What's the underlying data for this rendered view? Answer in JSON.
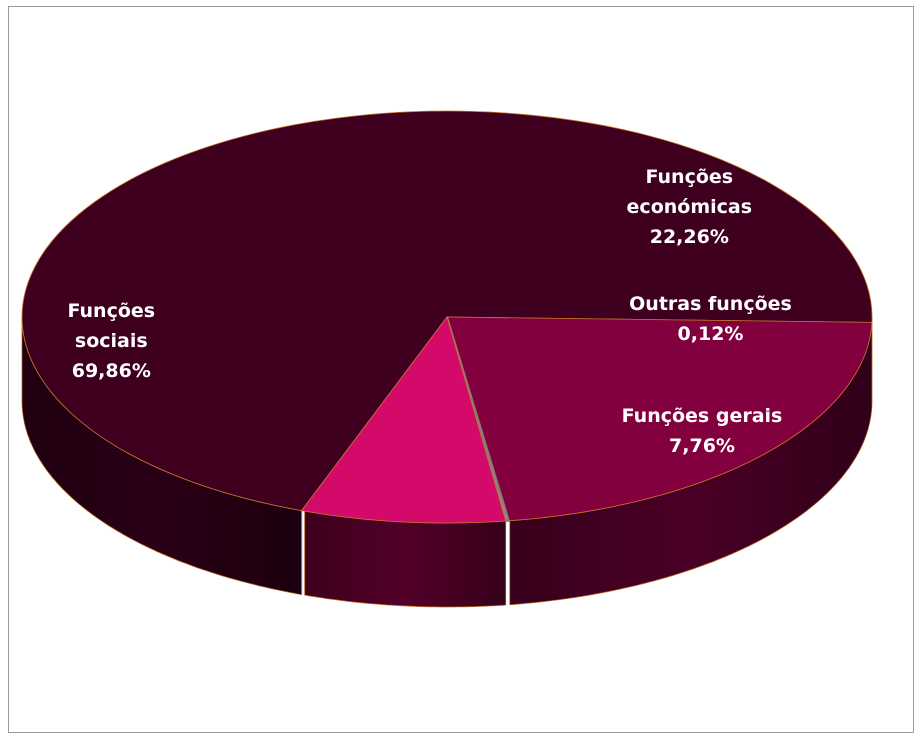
{
  "chart_data": {
    "type": "pie",
    "style": "3d",
    "title": "",
    "legend": "none",
    "slices": [
      {
        "label_lines": [
          "Funções",
          "sociais",
          "69,86%"
        ],
        "value": 69.86,
        "color": "#3f0020",
        "side_color": "#2a0016",
        "text_color": "#ffffff"
      },
      {
        "label_lines": [
          "Funções",
          "económicas",
          "22,26%"
        ],
        "value": 22.26,
        "color": "#83003f",
        "side_color": "#4a0026",
        "text_color": "#ffffff"
      },
      {
        "label_lines": [
          "Outras funções",
          "0,12%"
        ],
        "value": 0.12,
        "color": "#9c8c88",
        "side_color": "#6a5a58",
        "text_color": "#ffffff"
      },
      {
        "label_lines": [
          "Funções gerais",
          "7,76%"
        ],
        "value": 7.76,
        "color": "#d40a6a",
        "side_color": "#520028",
        "text_color": "#ffffff"
      }
    ]
  }
}
